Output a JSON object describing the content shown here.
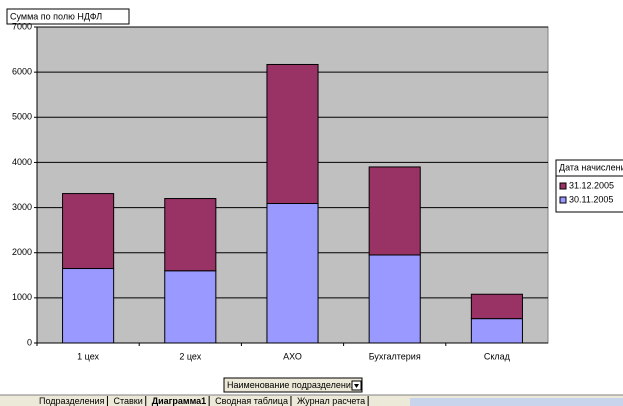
{
  "chart_data": {
    "type": "bar",
    "stacked": true,
    "title": "Сумма по полю НДФЛ",
    "x_label": "Наименование подразделения",
    "legend_title": "Дата начислени",
    "legend": "right",
    "categories": [
      "1 цех",
      "2 цех",
      "АХО",
      "Бухгалтерия",
      "Склад"
    ],
    "series": [
      {
        "name": "30.11.2005",
        "color": "#9999ff",
        "values": [
          1650,
          1600,
          3090,
          1950,
          540
        ]
      },
      {
        "name": "31.12.2005",
        "color": "#993366",
        "values": [
          1660,
          1600,
          3080,
          1950,
          540
        ]
      }
    ],
    "ylim": [
      0,
      7000
    ],
    "yticks": [
      0,
      1000,
      2000,
      3000,
      4000,
      5000,
      6000,
      7000
    ],
    "grid": true
  },
  "sheet_tabs": [
    "Подразделения",
    "Ставки",
    "Диаграмма1",
    "Сводная таблица",
    "Журнал расчета"
  ]
}
